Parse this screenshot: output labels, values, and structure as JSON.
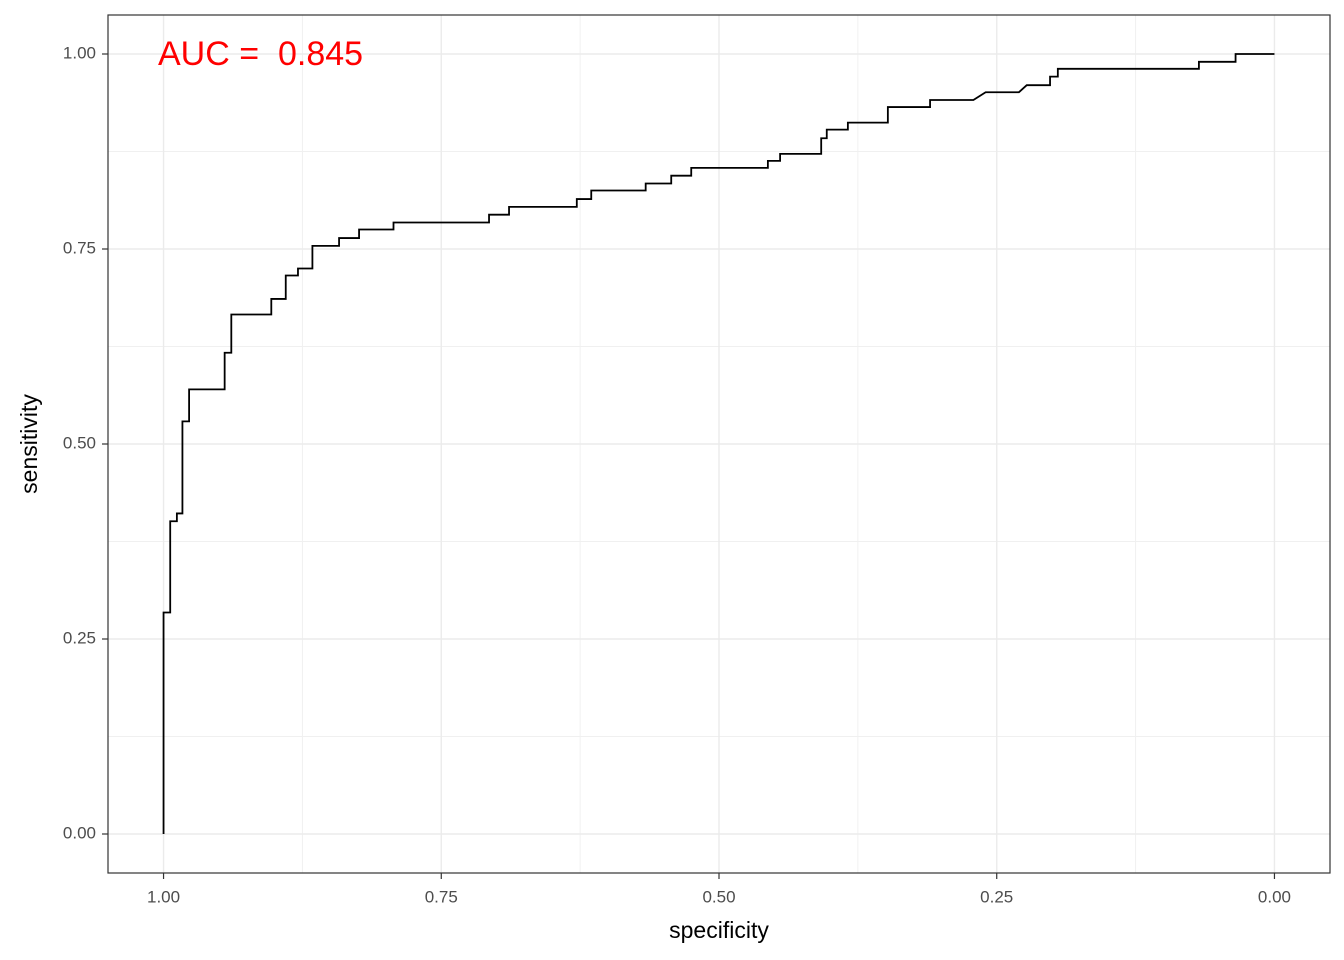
{
  "chart_data": {
    "type": "line",
    "xlabel": "specificity",
    "ylabel": "sensitivity",
    "annotation": "AUC =  0.845",
    "annotation_color": "#ff0000",
    "x": [
      1,
      1,
      0.994,
      0.994,
      0.988,
      0.988,
      0.983,
      0.983,
      0.977,
      0.977,
      0.945,
      0.945,
      0.939,
      0.939,
      0.903,
      0.903,
      0.89,
      0.89,
      0.879,
      0.879,
      0.866,
      0.866,
      0.842,
      0.842,
      0.824,
      0.824,
      0.793,
      0.793,
      0.707,
      0.707,
      0.689,
      0.689,
      0.628,
      0.628,
      0.615,
      0.615,
      0.566,
      0.566,
      0.543,
      0.543,
      0.525,
      0.525,
      0.456,
      0.456,
      0.445,
      0.445,
      0.408,
      0.408,
      0.403,
      0.403,
      0.384,
      0.384,
      0.348,
      0.348,
      0.31,
      0.31,
      0.271,
      0.26,
      0.23,
      0.223,
      0.202,
      0.202,
      0.195,
      0.195,
      0.068,
      0.068,
      0.035,
      0.035,
      0
    ],
    "values": [
      0,
      0.284,
      0.284,
      0.401,
      0.401,
      0.411,
      0.411,
      0.529,
      0.529,
      0.57,
      0.57,
      0.617,
      0.617,
      0.666,
      0.666,
      0.686,
      0.686,
      0.716,
      0.716,
      0.725,
      0.725,
      0.754,
      0.754,
      0.764,
      0.764,
      0.775,
      0.775,
      0.784,
      0.784,
      0.794,
      0.794,
      0.804,
      0.804,
      0.814,
      0.814,
      0.825,
      0.825,
      0.834,
      0.834,
      0.844,
      0.844,
      0.854,
      0.854,
      0.863,
      0.863,
      0.872,
      0.872,
      0.892,
      0.892,
      0.903,
      0.903,
      0.912,
      0.912,
      0.932,
      0.932,
      0.941,
      0.941,
      0.951,
      0.951,
      0.96,
      0.96,
      0.971,
      0.971,
      0.981,
      0.981,
      0.99,
      0.99,
      1,
      1
    ],
    "color": "#000000",
    "xlim": [
      1.05,
      -0.05
    ],
    "ylim": [
      -0.05,
      1.05
    ],
    "xticks": [
      {
        "value": 1,
        "label": "1.00"
      },
      0.75,
      {
        "value": 0.5,
        "label": "0.50"
      },
      0.25,
      {
        "value": 0,
        "label": "0.00"
      }
    ],
    "yticks": [
      {
        "value": 0,
        "label": "0.00"
      },
      0.25,
      {
        "value": 0.5,
        "label": "0.50"
      },
      0.75,
      {
        "value": 1,
        "label": "1.00"
      }
    ],
    "grid": true
  }
}
